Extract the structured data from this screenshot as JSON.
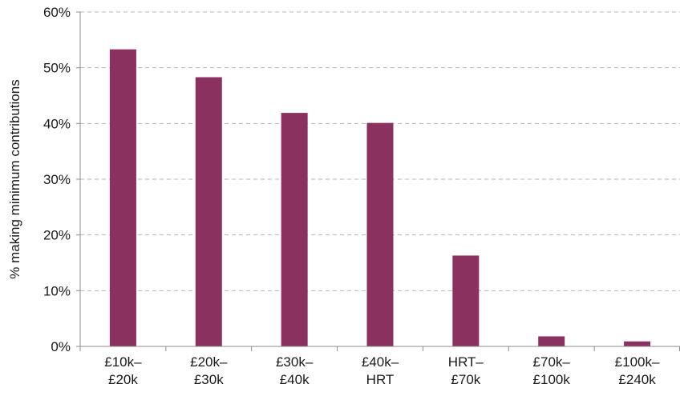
{
  "chart_data": {
    "type": "bar",
    "title": "",
    "xlabel": "",
    "ylabel": "% making minimum contributions",
    "categories": [
      [
        "£10k–",
        "£20k"
      ],
      [
        "£20k–",
        "£30k"
      ],
      [
        "£30k–",
        "£40k"
      ],
      [
        "£40k–",
        "HRT"
      ],
      [
        "HRT–",
        "£70k"
      ],
      [
        "£70k–",
        "£100k"
      ],
      [
        "£100k–",
        "£240k"
      ]
    ],
    "values": [
      53.3,
      48.3,
      41.9,
      40.1,
      16.3,
      1.8,
      0.9
    ],
    "ylim": [
      0,
      60
    ],
    "yticks": [
      0,
      10,
      20,
      30,
      40,
      50,
      60
    ],
    "ytick_labels": [
      "0%",
      "10%",
      "20%",
      "30%",
      "40%",
      "50%",
      "60%"
    ],
    "grid": true,
    "legend": "none",
    "colors": {
      "bar": "#8b3160",
      "grid": "#b5b5b5",
      "axis": "#8c8c8c",
      "text": "#1a1a1a"
    }
  }
}
